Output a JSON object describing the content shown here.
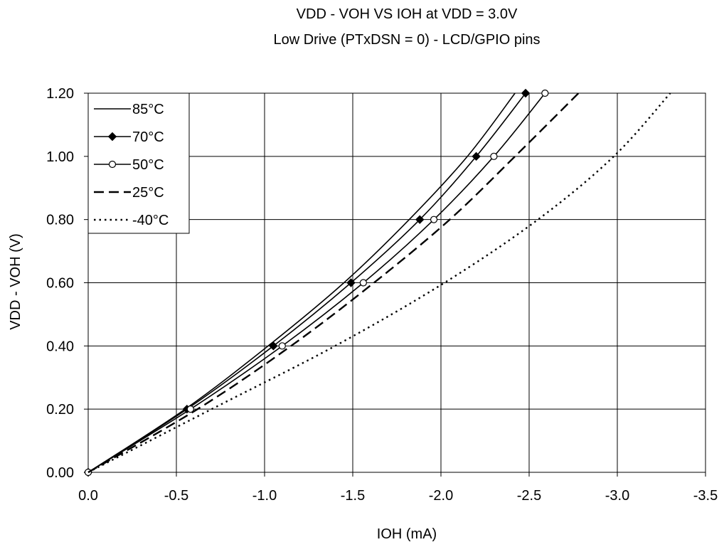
{
  "chart_data": {
    "type": "line",
    "title": "VDD - VOH VS IOH at VDD = 3.0V",
    "subtitle": "Low Drive (PTxDSN = 0) - LCD/GPIO pins",
    "xlabel": "IOH (mA)",
    "ylabel": "VDD - VOH (V)",
    "xlim": [
      0.0,
      -3.5
    ],
    "ylim": [
      0.0,
      1.2
    ],
    "xticks": [
      "0.0",
      "-0.5",
      "-1.0",
      "-1.5",
      "-2.0",
      "-2.5",
      "-3.0",
      "-3.5"
    ],
    "yticks": [
      "0.00",
      "0.20",
      "0.40",
      "0.60",
      "0.80",
      "1.00",
      "1.20"
    ],
    "xtick_values": [
      0.0,
      -0.5,
      -1.0,
      -1.5,
      -2.0,
      -2.5,
      -3.0,
      -3.5
    ],
    "ytick_values": [
      0.0,
      0.2,
      0.4,
      0.6,
      0.8,
      1.0,
      1.2
    ],
    "grid": true,
    "legend_position": "top-left",
    "series": [
      {
        "name": "85°C",
        "style": "solid",
        "marker": "none",
        "x": [
          0.0,
          -0.55,
          -1.02,
          -1.45,
          -1.82,
          -2.15,
          -2.42
        ],
        "y": [
          0.0,
          0.2,
          0.4,
          0.6,
          0.8,
          1.0,
          1.2
        ]
      },
      {
        "name": "70°C",
        "style": "solid",
        "marker": "diamond",
        "x": [
          0.0,
          -0.56,
          -1.05,
          -1.49,
          -1.88,
          -2.2,
          -2.48
        ],
        "y": [
          0.0,
          0.2,
          0.4,
          0.6,
          0.8,
          1.0,
          1.2
        ]
      },
      {
        "name": "50°C",
        "style": "solid",
        "marker": "open-circle",
        "x": [
          0.0,
          -0.58,
          -1.1,
          -1.56,
          -1.96,
          -2.3,
          -2.59
        ],
        "y": [
          0.0,
          0.2,
          0.4,
          0.6,
          0.8,
          1.0,
          1.2
        ]
      },
      {
        "name": "25°C",
        "style": "dashed",
        "marker": "none",
        "x": [
          0.0,
          -0.62,
          -1.15,
          -1.62,
          -2.05,
          -2.42,
          -2.78
        ],
        "y": [
          0.0,
          0.2,
          0.4,
          0.6,
          0.8,
          1.0,
          1.2
        ]
      },
      {
        "name": "-40°C",
        "style": "dotted",
        "marker": "none",
        "x": [
          0.0,
          -0.7,
          -1.4,
          -2.02,
          -2.55,
          -2.98,
          -3.3
        ],
        "y": [
          0.0,
          0.2,
          0.4,
          0.6,
          0.8,
          1.0,
          1.2
        ]
      }
    ]
  }
}
